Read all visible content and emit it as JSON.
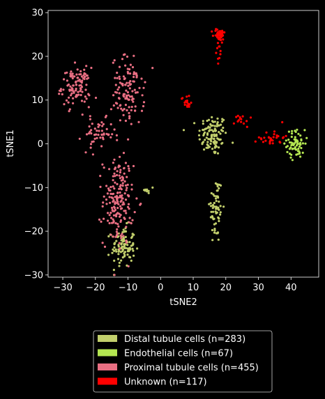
{
  "chart_data": {
    "type": "scatter",
    "title": "",
    "xlabel": "tSNE2",
    "ylabel": "tSNE1",
    "xlim": [
      -34.5,
      48.5
    ],
    "ylim": [
      -30.5,
      30.5
    ],
    "xticks": [
      -30,
      -20,
      -10,
      0,
      10,
      20,
      30,
      40
    ],
    "yticks": [
      -30,
      -20,
      -10,
      0,
      10,
      20,
      30
    ],
    "legend_position": "below",
    "series": [
      {
        "name": "Distal tubule cells (n=283)",
        "color": "#c2cf6c",
        "n": 283,
        "clusters": [
          {
            "x": 16,
            "y": 2,
            "sx": 2.2,
            "sy": 2.4,
            "n": 110
          },
          {
            "x": 17,
            "y": -15,
            "sx": 1.0,
            "sy": 4.0,
            "n": 65
          },
          {
            "x": -11.5,
            "y": -23.5,
            "sx": 1.8,
            "sy": 2.3,
            "n": 100
          },
          {
            "x": -3,
            "y": -10.5,
            "sx": 1.0,
            "sy": 0.5,
            "n": 8
          }
        ]
      },
      {
        "name": "Endothelial cells (n=67)",
        "color": "#b4e651",
        "n": 67,
        "clusters": [
          {
            "x": 41.5,
            "y": 0,
            "sx": 1.4,
            "sy": 1.6,
            "n": 67
          }
        ]
      },
      {
        "name": "Proximal tubule cells (n=455)",
        "color": "#e96f83",
        "n": 455,
        "clusters": [
          {
            "x": -26,
            "y": 13,
            "sx": 2.2,
            "sy": 2.2,
            "n": 105
          },
          {
            "x": -10,
            "y": 12,
            "sx": 2.5,
            "sy": 4.0,
            "n": 120
          },
          {
            "x": -13,
            "y": -13,
            "sx": 2.3,
            "sy": 5.0,
            "n": 180
          },
          {
            "x": -19,
            "y": 2,
            "sx": 2.5,
            "sy": 1.8,
            "n": 50
          }
        ]
      },
      {
        "name": "Unknown (n=117)",
        "color": "#ff0000",
        "n": 117,
        "clusters": [
          {
            "x": 18,
            "y": 25,
            "sx": 0.9,
            "sy": 0.7,
            "n": 45
          },
          {
            "x": 8,
            "y": 9.5,
            "sx": 0.8,
            "sy": 0.8,
            "n": 18
          },
          {
            "x": 25,
            "y": 5.5,
            "sx": 1.2,
            "sy": 0.8,
            "n": 14
          },
          {
            "x": 34,
            "y": 1.5,
            "sx": 2.0,
            "sy": 1.0,
            "n": 30
          },
          {
            "x": 18,
            "y": 21,
            "sx": 0.5,
            "sy": 1.2,
            "n": 10
          }
        ]
      }
    ]
  }
}
